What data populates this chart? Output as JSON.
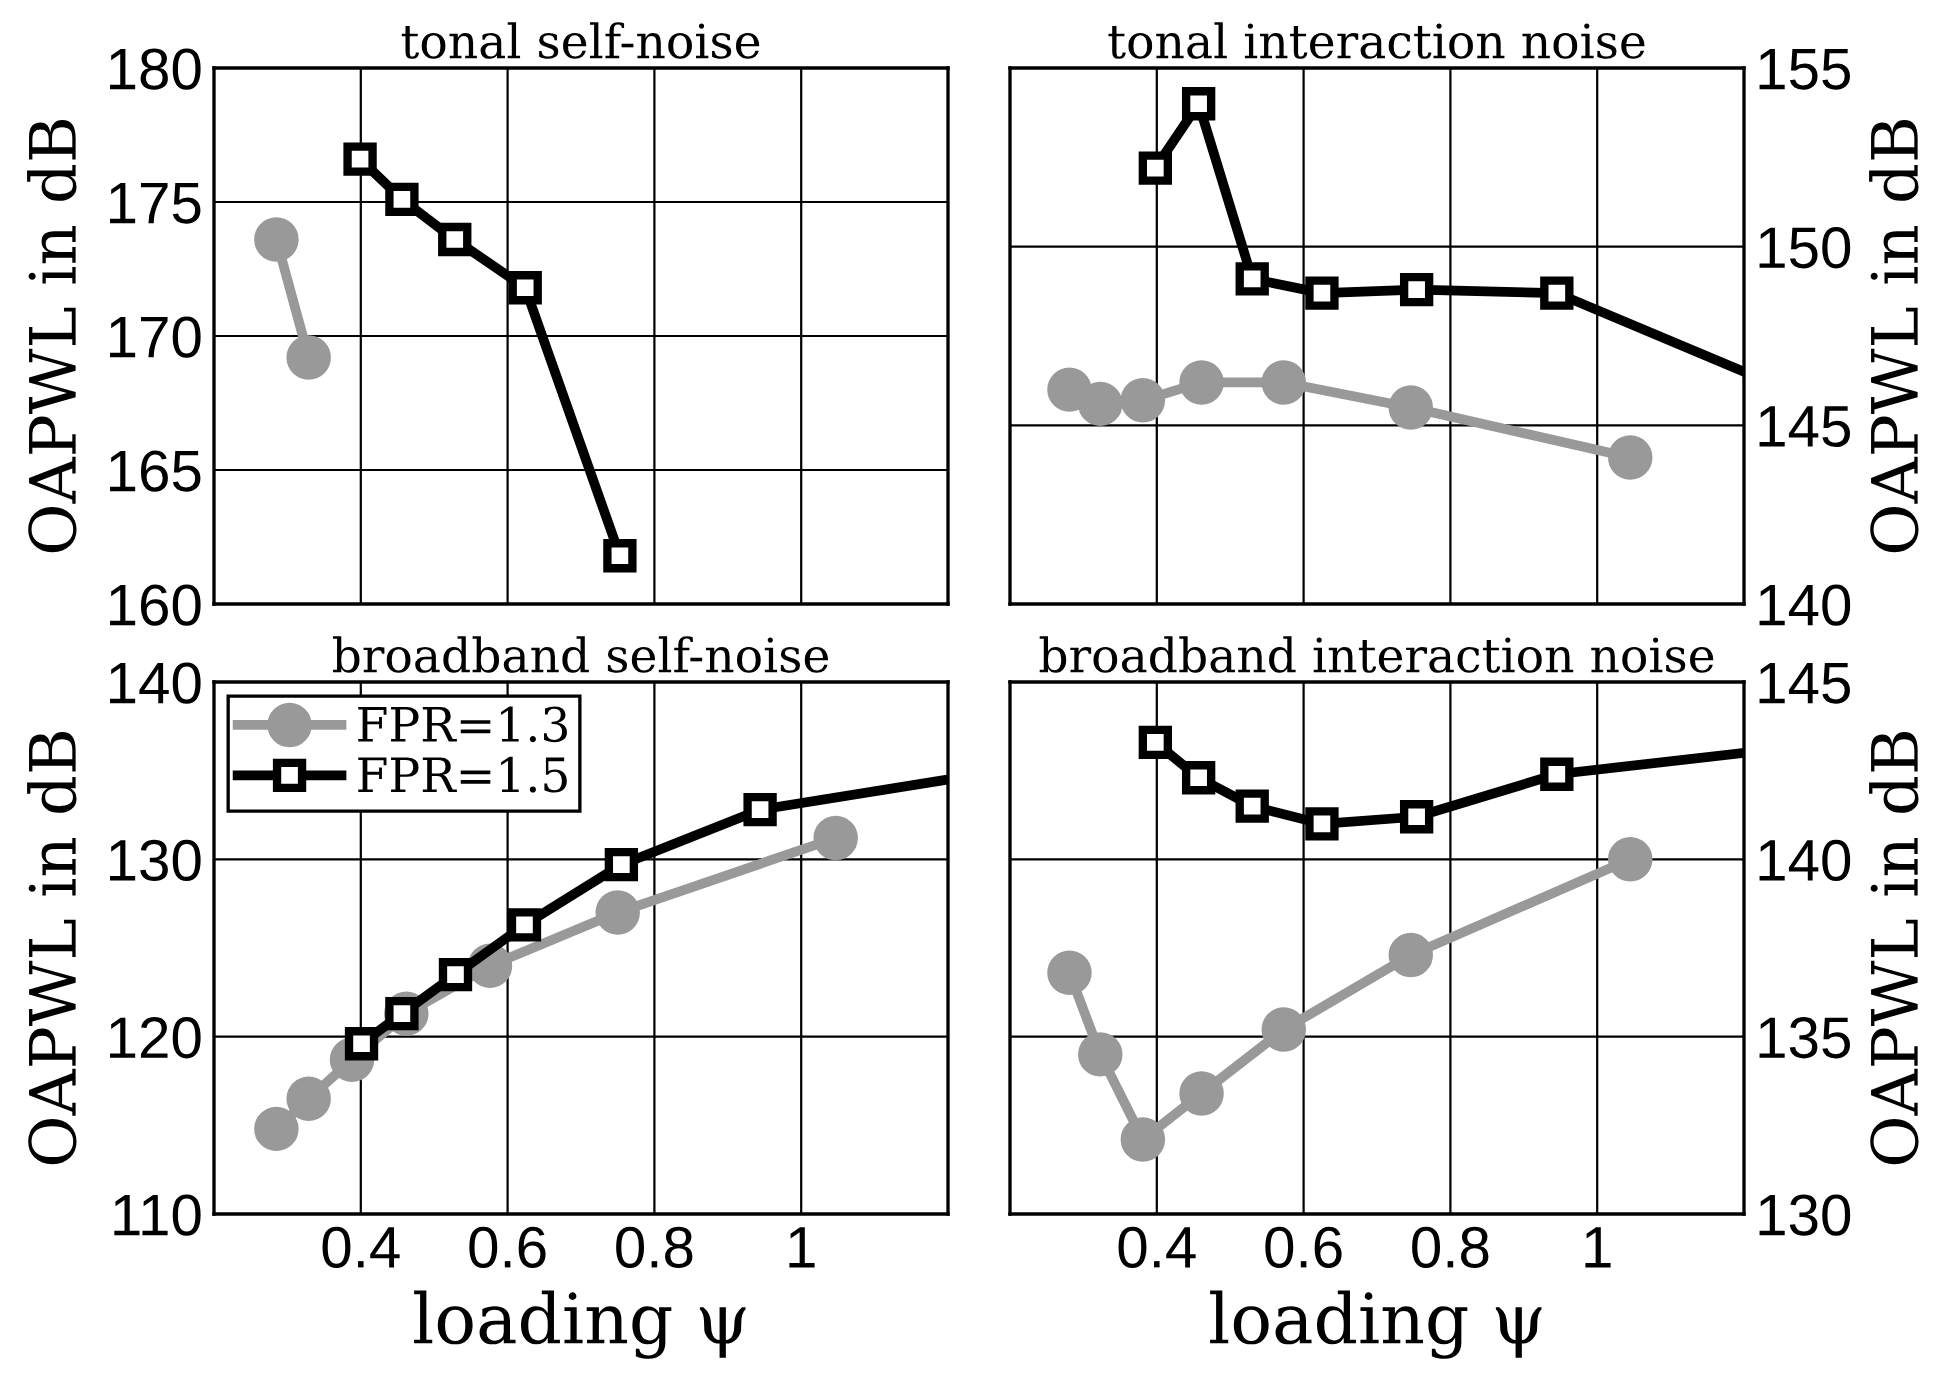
{
  "chart_data": [
    {
      "type": "line",
      "title": "tonal self-noise",
      "ylabel": "OAPWL in dB",
      "xlim": [
        0.2,
        1.2
      ],
      "xticks": [
        0.4,
        0.6,
        0.8,
        1
      ],
      "ylim": [
        160,
        180
      ],
      "yticks": [
        160,
        165,
        170,
        175,
        180
      ],
      "grid": true,
      "tick_labels": "y",
      "line_style": "solid",
      "series": [
        {
          "color": "#999999",
          "marker": "circle",
          "x": [
            0.285,
            0.329
          ],
          "values": [
            173.6,
            169.2
          ]
        },
        {
          "color": "#000000",
          "marker": "square",
          "x": [
            0.399,
            0.456,
            0.528,
            0.624,
            0.753
          ],
          "values": [
            176.6,
            175.1,
            173.6,
            171.8,
            161.8
          ]
        }
      ]
    },
    {
      "type": "line",
      "title": "tonal interaction noise",
      "y2label": "OAPWL in dB",
      "xlim": [
        0.2,
        1.2
      ],
      "xticks": [
        0.4,
        0.6,
        0.8,
        1
      ],
      "y2lim": [
        140,
        155
      ],
      "y2ticks": [
        140,
        145,
        150,
        155
      ],
      "grid": true,
      "tick_labels": "y",
      "line_style": "solid",
      "series": [
        {
          "color": "#999999",
          "marker": "circle",
          "axis": "y2",
          "x": [
            0.281,
            0.323,
            0.381,
            0.461,
            0.573,
            0.746,
            1.045
          ],
          "values": [
            146.0,
            145.6,
            145.7,
            146.2,
            146.2,
            145.5,
            144.1
          ]
        },
        {
          "color": "#000000",
          "marker": "square",
          "axis": "y2",
          "x": [
            0.398,
            0.457,
            0.53,
            0.625,
            0.754,
            0.945,
            1.2
          ],
          "values": [
            152.2,
            154.0,
            149.1,
            148.7,
            148.8,
            148.7,
            146.5
          ]
        }
      ]
    },
    {
      "type": "line",
      "title": "broadband self-noise",
      "ylabel": "OAPWL in dB",
      "xlabel": "loading ψ",
      "xlim": [
        0.2,
        1.2
      ],
      "xticks": [
        0.4,
        0.6,
        0.8,
        1
      ],
      "ylim": [
        110,
        140
      ],
      "yticks": [
        110,
        120,
        130,
        140
      ],
      "grid": true,
      "legend": "top left",
      "line_style": "solid",
      "series": [
        {
          "name": "FPR=1.3",
          "color": "#999999",
          "marker": "circle",
          "x": [
            0.285,
            0.329,
            0.388,
            0.462,
            0.576,
            0.75,
            1.047
          ],
          "values": [
            114.8,
            116.5,
            118.7,
            121.3,
            124.0,
            127.0,
            131.2
          ]
        },
        {
          "name": "FPR=1.5",
          "color": "#000000",
          "marker": "square",
          "x": [
            0.401,
            0.456,
            0.529,
            0.623,
            0.755,
            0.944,
            1.2
          ],
          "values": [
            119.6,
            121.3,
            123.5,
            126.3,
            129.7,
            132.8,
            134.5
          ]
        }
      ]
    },
    {
      "type": "line",
      "title": "broadband interaction noise",
      "y2label": "OAPWL in dB",
      "xlabel": "loading ψ",
      "xlim": [
        0.2,
        1.2
      ],
      "xticks": [
        0.4,
        0.6,
        0.8,
        1
      ],
      "y2lim": [
        130,
        145
      ],
      "y2ticks": [
        130,
        135,
        140,
        145
      ],
      "grid": true,
      "line_style": "solid",
      "series": [
        {
          "color": "#999999",
          "marker": "circle",
          "axis": "y2",
          "x": [
            0.281,
            0.323,
            0.381,
            0.461,
            0.573,
            0.746,
            1.045
          ],
          "values": [
            136.8,
            134.5,
            132.1,
            133.4,
            135.2,
            137.3,
            140.0
          ]
        },
        {
          "color": "#000000",
          "marker": "square",
          "axis": "y2",
          "x": [
            0.398,
            0.457,
            0.53,
            0.625,
            0.754,
            0.945,
            1.2
          ],
          "values": [
            143.3,
            142.3,
            141.5,
            141.0,
            141.2,
            142.4,
            143.0
          ]
        }
      ]
    }
  ]
}
